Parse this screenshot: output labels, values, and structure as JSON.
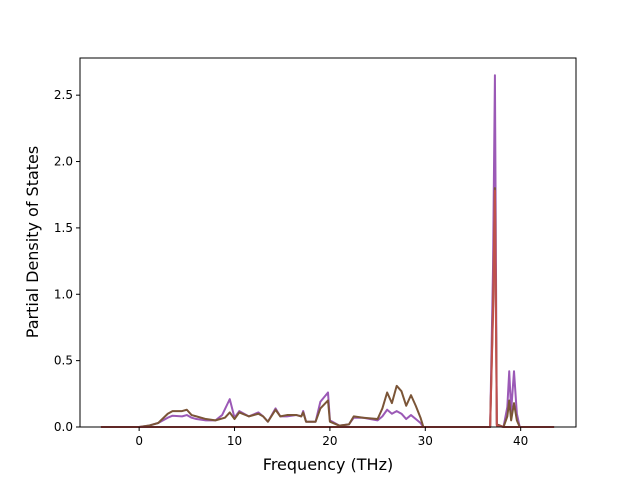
{
  "chart_data": {
    "type": "line",
    "title": "",
    "xlabel": "Frequency (THz)",
    "ylabel": "Partial Density of States",
    "xlim": [
      -6.2,
      45.8
    ],
    "ylim": [
      0,
      2.78
    ],
    "xticks": [
      0,
      10,
      20,
      30,
      40
    ],
    "xtick_labels": [
      "0",
      "10",
      "20",
      "30",
      "40"
    ],
    "yticks": [
      0.0,
      0.5,
      1.0,
      1.5,
      2.0,
      2.5
    ],
    "ytick_labels": [
      "0.0",
      "0.5",
      "1.0",
      "1.5",
      "2.0",
      "2.5"
    ],
    "grid": false,
    "legend": "none",
    "series": [
      {
        "color": "#9b59b6",
        "points": [
          [
            -4,
            0
          ],
          [
            0,
            0
          ],
          [
            1,
            0.01
          ],
          [
            2,
            0.03
          ],
          [
            3,
            0.07
          ],
          [
            3.5,
            0.085
          ],
          [
            4.5,
            0.08
          ],
          [
            5,
            0.09
          ],
          [
            5.5,
            0.07
          ],
          [
            6,
            0.06
          ],
          [
            7,
            0.05
          ],
          [
            8,
            0.05
          ],
          [
            8.7,
            0.09
          ],
          [
            9.5,
            0.21
          ],
          [
            10,
            0.07
          ],
          [
            10.5,
            0.12
          ],
          [
            11.5,
            0.08
          ],
          [
            12.5,
            0.11
          ],
          [
            13,
            0.08
          ],
          [
            13.5,
            0.04
          ],
          [
            14.3,
            0.14
          ],
          [
            14.8,
            0.08
          ],
          [
            15.5,
            0.08
          ],
          [
            16.5,
            0.09
          ],
          [
            17,
            0.08
          ],
          [
            17.2,
            0.12
          ],
          [
            17.5,
            0.04
          ],
          [
            18.5,
            0.04
          ],
          [
            19,
            0.19
          ],
          [
            19.8,
            0.26
          ],
          [
            20,
            0.05
          ],
          [
            21,
            0.01
          ],
          [
            22,
            0.02
          ],
          [
            22.5,
            0.07
          ],
          [
            23.5,
            0.07
          ],
          [
            25,
            0.05
          ],
          [
            25.5,
            0.08
          ],
          [
            26,
            0.13
          ],
          [
            26.5,
            0.1
          ],
          [
            27,
            0.12
          ],
          [
            27.5,
            0.1
          ],
          [
            28,
            0.06
          ],
          [
            28.5,
            0.09
          ],
          [
            29,
            0.06
          ],
          [
            29.5,
            0.03
          ],
          [
            29.8,
            0
          ],
          [
            36.8,
            0
          ],
          [
            37.1,
            1.2
          ],
          [
            37.3,
            2.65
          ],
          [
            37.5,
            0.02
          ],
          [
            38.2,
            0
          ],
          [
            38.6,
            0.15
          ],
          [
            38.8,
            0.42
          ],
          [
            39,
            0.12
          ],
          [
            39.3,
            0.42
          ],
          [
            39.6,
            0.1
          ],
          [
            39.9,
            0
          ],
          [
            43.5,
            0
          ]
        ]
      },
      {
        "color": "#7b5537",
        "points": [
          [
            -4,
            0
          ],
          [
            0,
            0
          ],
          [
            1,
            0.01
          ],
          [
            2,
            0.03
          ],
          [
            3,
            0.1
          ],
          [
            3.5,
            0.12
          ],
          [
            4.5,
            0.12
          ],
          [
            5,
            0.13
          ],
          [
            5.5,
            0.09
          ],
          [
            6,
            0.08
          ],
          [
            7,
            0.06
          ],
          [
            8,
            0.05
          ],
          [
            9,
            0.07
          ],
          [
            9.5,
            0.11
          ],
          [
            10,
            0.06
          ],
          [
            10.5,
            0.11
          ],
          [
            11.5,
            0.08
          ],
          [
            12.5,
            0.1
          ],
          [
            13,
            0.08
          ],
          [
            13.5,
            0.04
          ],
          [
            14.3,
            0.13
          ],
          [
            14.8,
            0.08
          ],
          [
            15.5,
            0.09
          ],
          [
            16.5,
            0.09
          ],
          [
            17,
            0.08
          ],
          [
            17.2,
            0.11
          ],
          [
            17.5,
            0.04
          ],
          [
            18.5,
            0.04
          ],
          [
            19,
            0.14
          ],
          [
            19.8,
            0.2
          ],
          [
            20,
            0.04
          ],
          [
            21,
            0.01
          ],
          [
            22,
            0.02
          ],
          [
            22.5,
            0.08
          ],
          [
            23.5,
            0.07
          ],
          [
            25,
            0.06
          ],
          [
            25.5,
            0.14
          ],
          [
            26,
            0.26
          ],
          [
            26.5,
            0.18
          ],
          [
            27,
            0.31
          ],
          [
            27.5,
            0.27
          ],
          [
            28,
            0.16
          ],
          [
            28.5,
            0.24
          ],
          [
            29,
            0.16
          ],
          [
            29.5,
            0.07
          ],
          [
            29.8,
            0
          ],
          [
            36.8,
            0
          ],
          [
            37.1,
            0.9
          ],
          [
            37.3,
            1.8
          ],
          [
            37.5,
            0.02
          ],
          [
            38.2,
            0
          ],
          [
            38.6,
            0.08
          ],
          [
            38.8,
            0.2
          ],
          [
            39,
            0.05
          ],
          [
            39.3,
            0.18
          ],
          [
            39.6,
            0.05
          ],
          [
            39.9,
            0
          ],
          [
            43.5,
            0
          ]
        ]
      },
      {
        "color": "#c0504d",
        "points": [
          [
            -4,
            0
          ],
          [
            36.8,
            0
          ],
          [
            37.1,
            0.85
          ],
          [
            37.3,
            1.78
          ],
          [
            37.5,
            0.01
          ],
          [
            38.2,
            0
          ],
          [
            43.5,
            0
          ]
        ]
      }
    ]
  }
}
